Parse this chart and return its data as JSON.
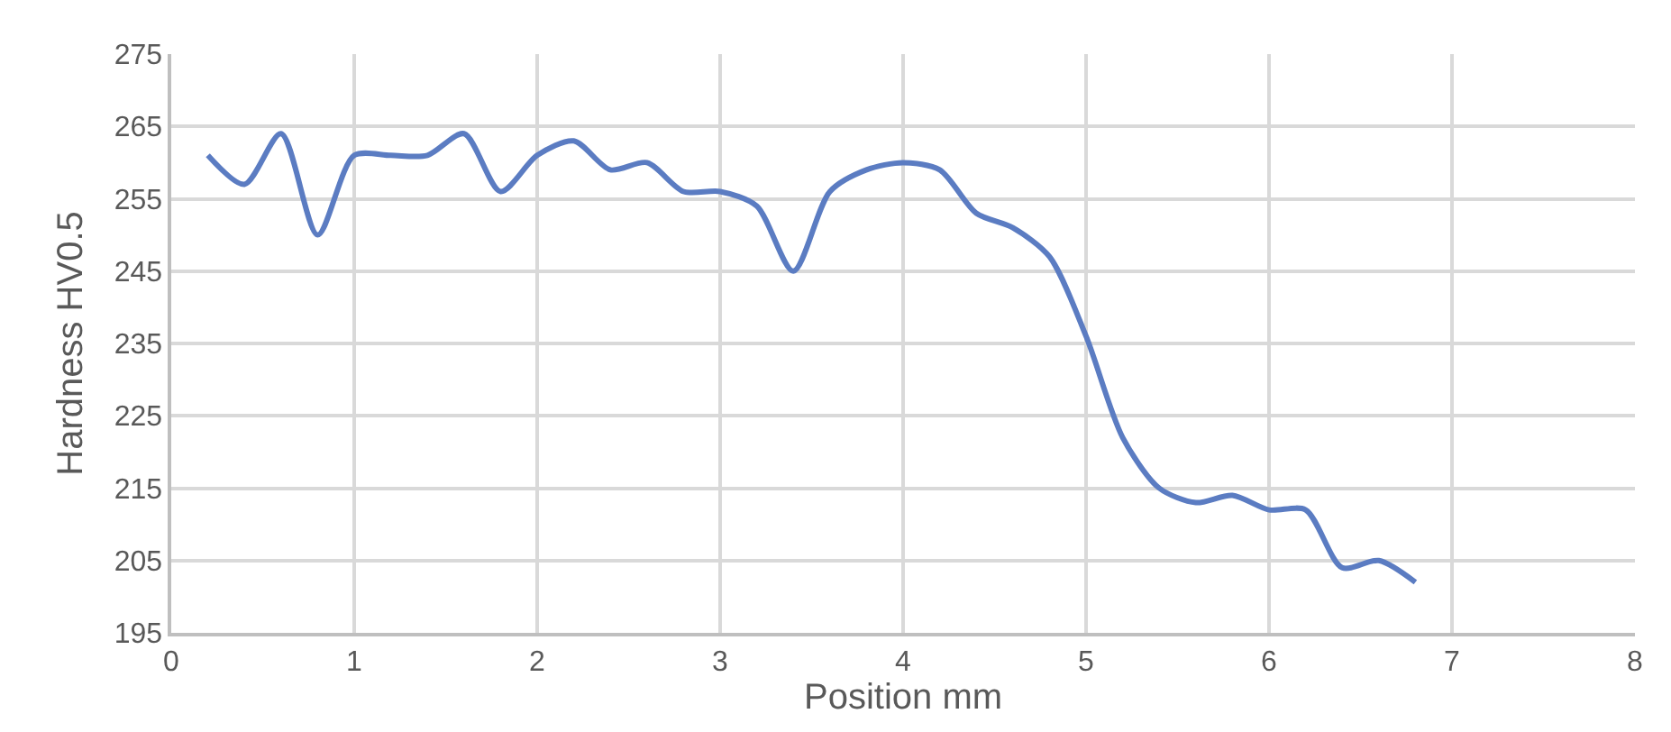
{
  "chart_data": {
    "type": "line",
    "xlabel": "Position mm",
    "ylabel": "Hardness HV0.5",
    "x": [
      0.2,
      0.4,
      0.6,
      0.8,
      1.0,
      1.2,
      1.4,
      1.6,
      1.8,
      2.0,
      2.2,
      2.4,
      2.6,
      2.8,
      3.0,
      3.2,
      3.4,
      3.6,
      3.8,
      4.0,
      4.2,
      4.4,
      4.6,
      4.8,
      5.0,
      5.2,
      5.4,
      5.6,
      5.8,
      6.0,
      6.2,
      6.4,
      6.6,
      6.8
    ],
    "series": [
      {
        "color": "#5b7cc2",
        "values": [
          261,
          257,
          264,
          250,
          261,
          261,
          261,
          264,
          256,
          261,
          263,
          259,
          260,
          256,
          256,
          254,
          245,
          256,
          259,
          260,
          259,
          253,
          251,
          247,
          236,
          222,
          215,
          213,
          214,
          212,
          212,
          204,
          205,
          202
        ]
      }
    ],
    "xlim": [
      0,
      8
    ],
    "xticks": [
      0,
      1,
      2,
      3,
      4,
      5,
      6,
      7,
      8
    ],
    "ylim": [
      195,
      275
    ],
    "yticks": [
      195,
      205,
      215,
      225,
      235,
      245,
      255,
      265,
      275
    ],
    "grid": true,
    "legend": false,
    "marker": "none",
    "line_style": "solid"
  }
}
